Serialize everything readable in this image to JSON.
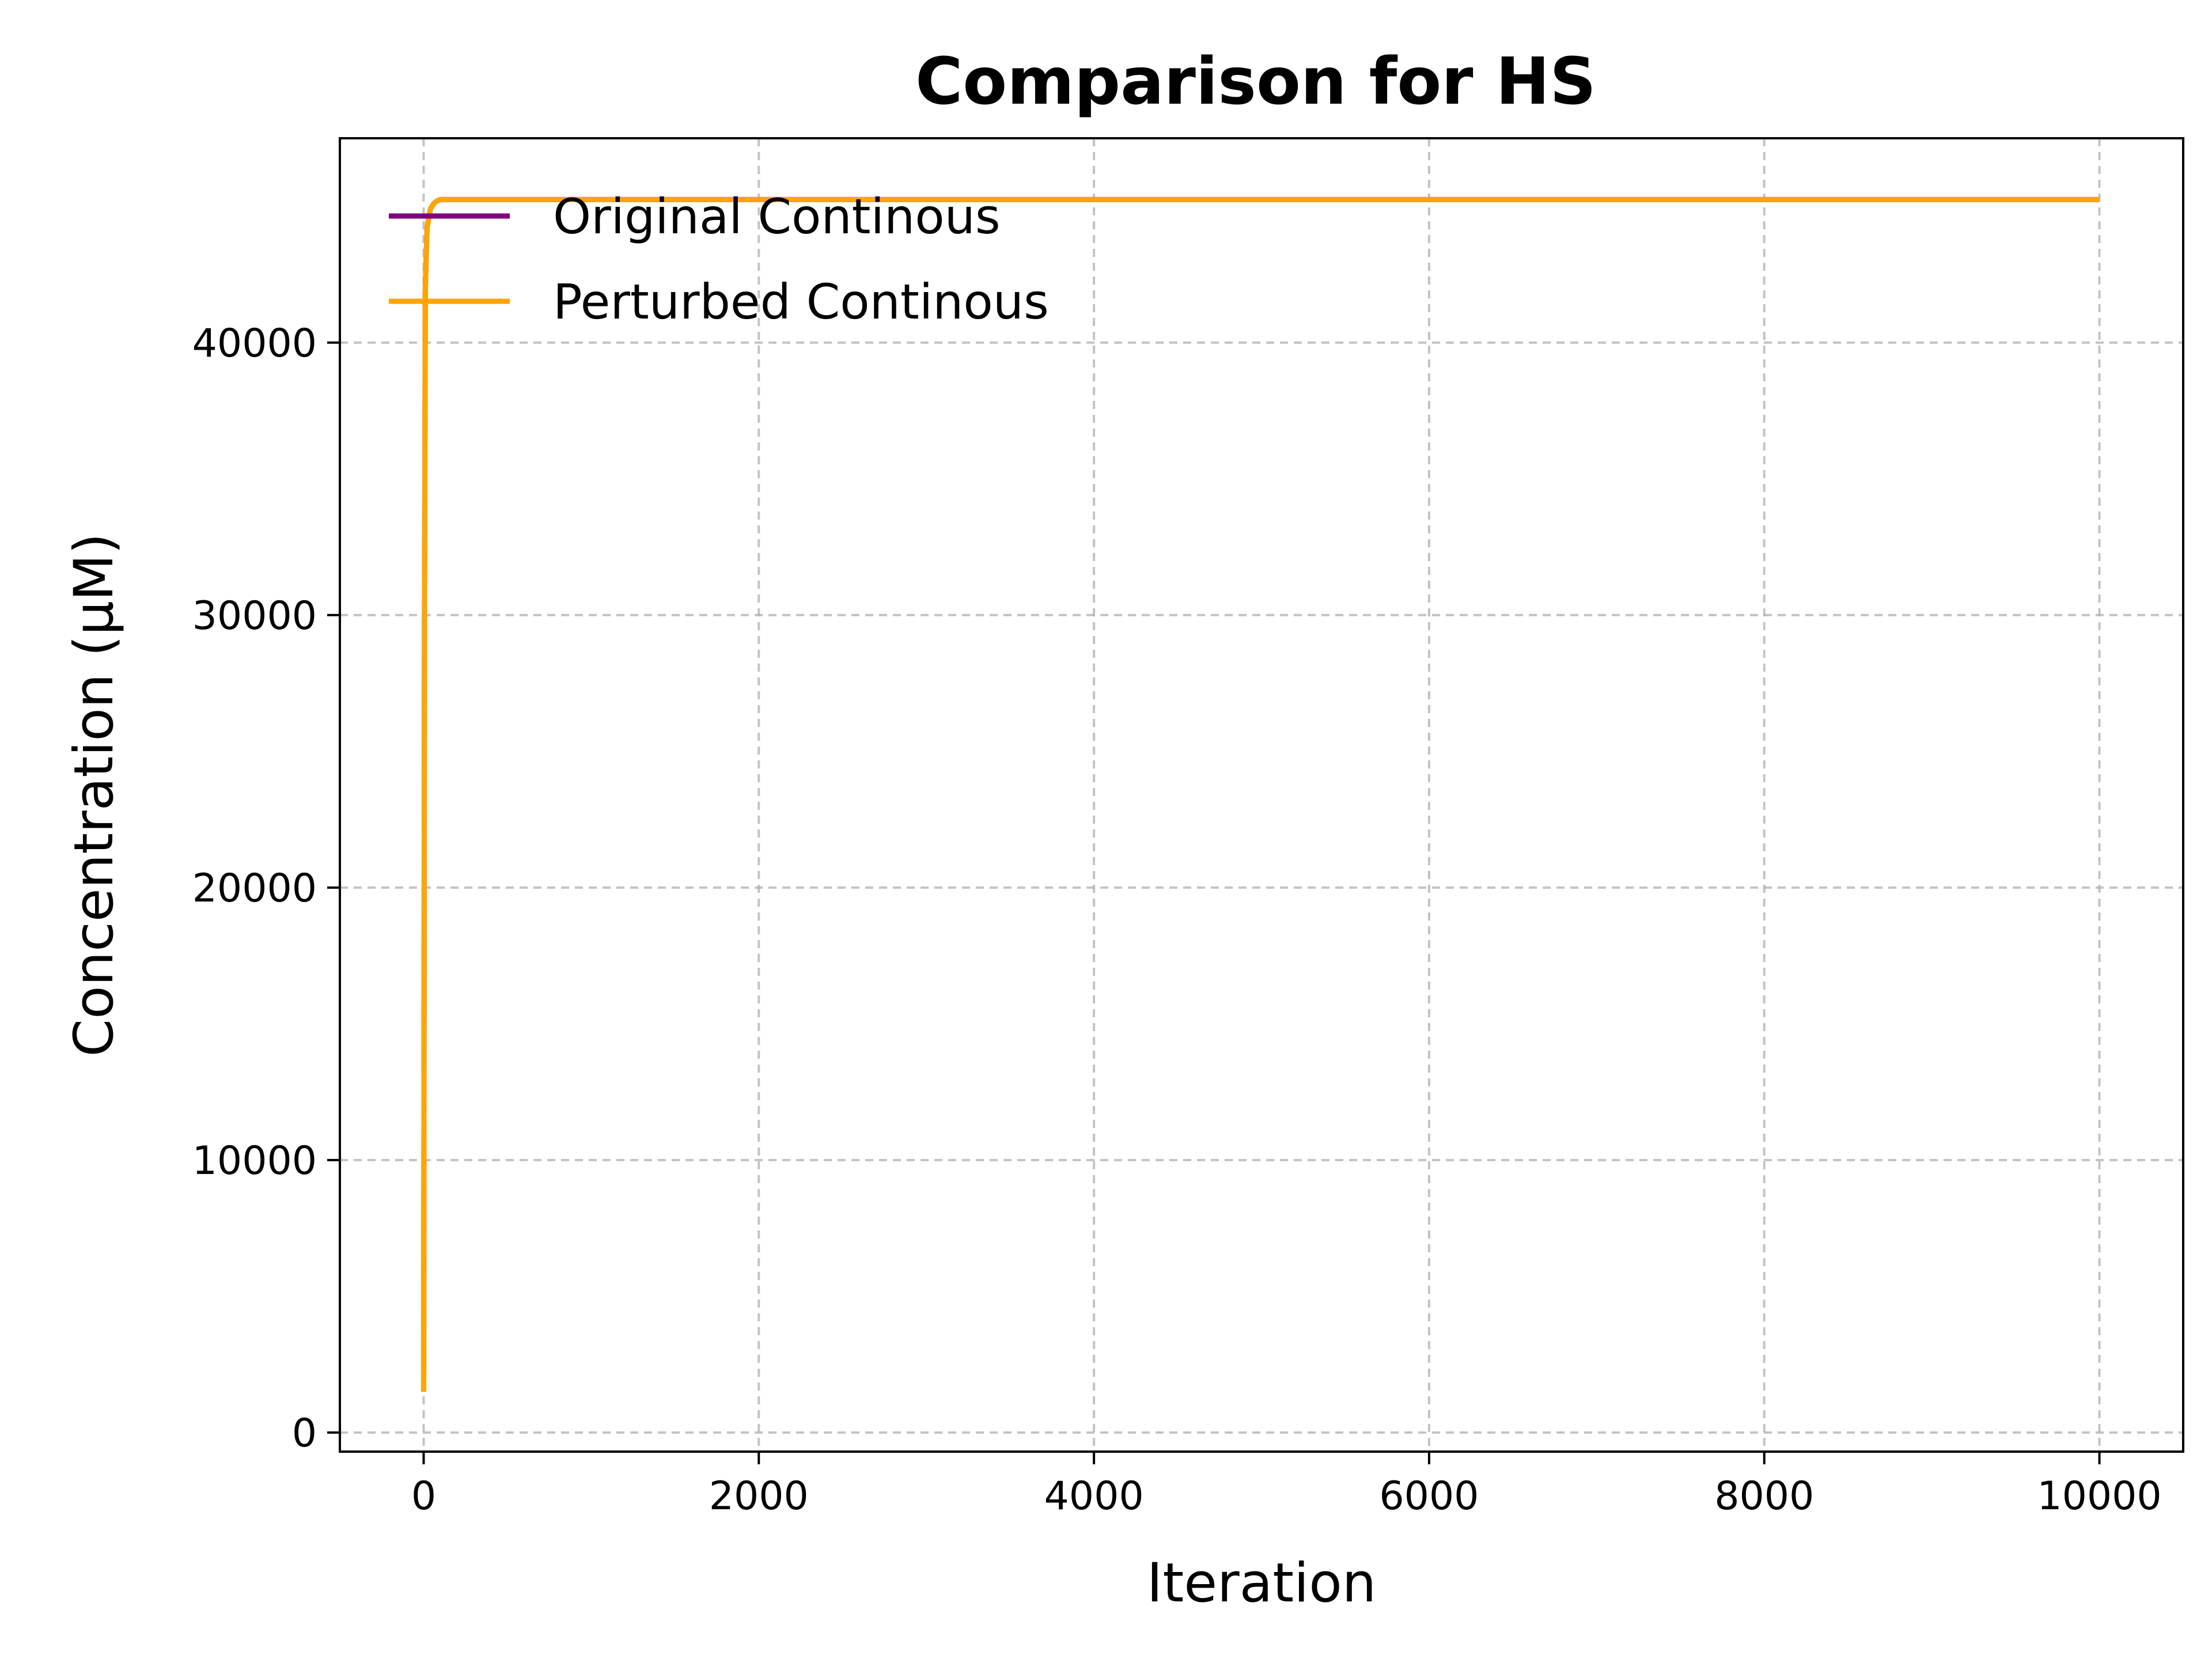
{
  "chart_data": {
    "type": "line",
    "title": "Comparison for HS",
    "xlabel": "Iteration",
    "ylabel": "Concentration (μM)",
    "xlim": [
      -500,
      10500
    ],
    "ylim": [
      -700,
      47500
    ],
    "xticks": [
      0,
      2000,
      4000,
      6000,
      8000,
      10000
    ],
    "yticks": [
      0,
      10000,
      20000,
      30000,
      40000
    ],
    "grid": true,
    "legend_position": "top-left",
    "series": [
      {
        "name": "Original Continous",
        "color": "#800080",
        "x": [
          0,
          5,
          10,
          20,
          40,
          60,
          80,
          100,
          500,
          1000,
          10000
        ],
        "y": [
          1500,
          30000,
          42000,
          44200,
          44900,
          45100,
          45200,
          45250,
          45250,
          45250,
          45250
        ]
      },
      {
        "name": "Perturbed Continous",
        "color": "#FFA500",
        "x": [
          0,
          5,
          10,
          20,
          40,
          60,
          80,
          100,
          500,
          1000,
          10000
        ],
        "y": [
          1500,
          30000,
          42000,
          44200,
          44900,
          45100,
          45200,
          45250,
          45250,
          45250,
          45250
        ]
      }
    ]
  }
}
